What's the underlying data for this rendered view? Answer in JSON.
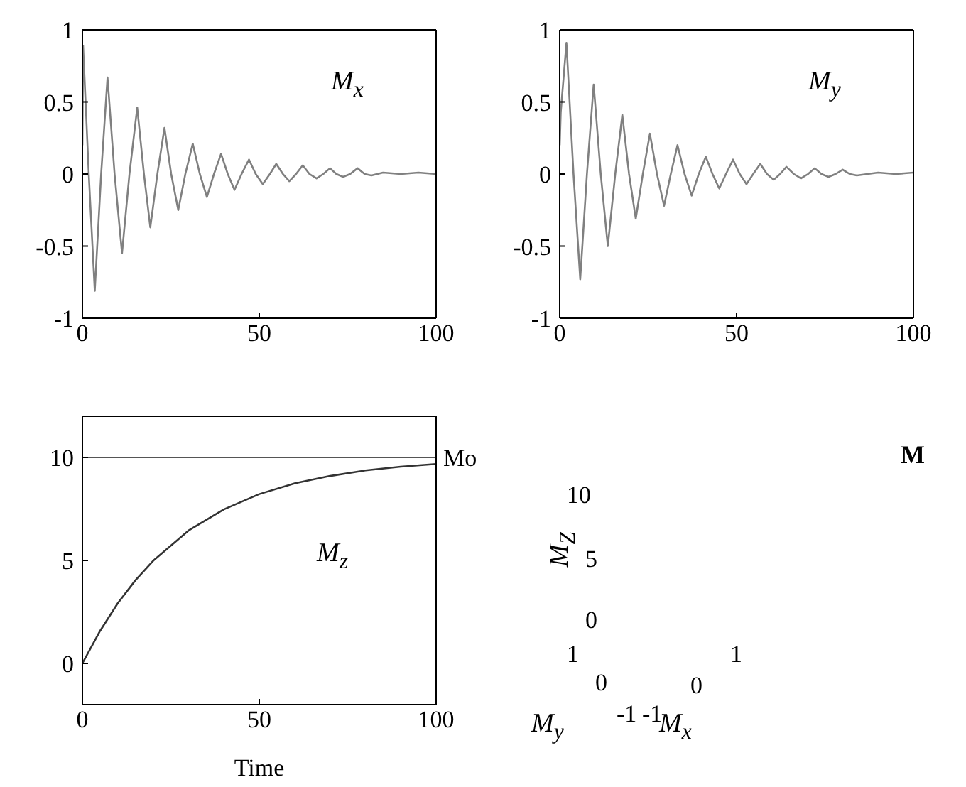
{
  "chart_data": [
    {
      "type": "line",
      "annotations": [
        "M$_{x}$"
      ],
      "xlim": [
        0,
        100
      ],
      "xticks": [
        0,
        50,
        100
      ],
      "ylim": [
        -1,
        1
      ],
      "yticks": [
        -1,
        -0.5,
        0,
        0.5,
        1
      ],
      "marker": "none",
      "line_style": "solid",
      "series": [
        {
          "color": "#808080",
          "x": [
            0,
            0.2,
            1.8,
            3.5,
            5.3,
            7.1,
            9.1,
            11.2,
            13.3,
            15.5,
            17.4,
            19.2,
            21.2,
            23.2,
            25.1,
            27.1,
            29.1,
            31.2,
            33.2,
            35.2,
            37.2,
            39.2,
            41.1,
            43,
            45,
            47.1,
            49,
            51,
            53,
            54.8,
            56.7,
            58.5,
            60.4,
            62.3,
            64.2,
            66.2,
            68.1,
            70,
            71.8,
            73.7,
            75.7,
            77.8,
            79.8,
            81.7,
            85,
            90,
            95,
            100
          ],
          "values": [
            0.2,
            0.89,
            0,
            -0.81,
            0,
            0.67,
            0,
            -0.55,
            0,
            0.46,
            0,
            -0.37,
            0,
            0.32,
            0,
            -0.25,
            0,
            0.21,
            0,
            -0.16,
            0,
            0.14,
            0,
            -0.11,
            0,
            0.1,
            0,
            -0.07,
            0,
            0.07,
            0,
            -0.05,
            0,
            0.06,
            0,
            -0.03,
            0,
            0.04,
            0,
            -0.02,
            0,
            0.04,
            0,
            -0.01,
            0.01,
            0,
            0.01,
            0
          ]
        }
      ]
    },
    {
      "type": "line",
      "annotations": [
        "M$_{y}$"
      ],
      "xlim": [
        0,
        100
      ],
      "xticks": [
        0,
        50,
        100
      ],
      "ylim": [
        -1,
        1
      ],
      "yticks": [
        -1,
        -0.5,
        0,
        0.5,
        1
      ],
      "marker": "none",
      "line_style": "solid",
      "series": [
        {
          "color": "#808080",
          "x": [
            0,
            0.3,
            1.9,
            3.9,
            5.8,
            7.7,
            9.6,
            11.6,
            13.6,
            15.7,
            17.7,
            19.6,
            21.5,
            23.5,
            25.5,
            27.5,
            29.5,
            31.4,
            33.3,
            35.3,
            37.3,
            39.3,
            41.3,
            43.2,
            45.1,
            47,
            49,
            50.9,
            52.8,
            54.7,
            56.7,
            58.6,
            60.5,
            62.3,
            64.1,
            66.2,
            68.2,
            70.2,
            72.1,
            74,
            76,
            78,
            80,
            82,
            84,
            90,
            95,
            100
          ],
          "values": [
            0.2,
            0.43,
            0.91,
            0,
            -0.73,
            0,
            0.62,
            0,
            -0.5,
            0,
            0.41,
            0,
            -0.31,
            0,
            0.28,
            0,
            -0.22,
            0,
            0.2,
            0,
            -0.15,
            0,
            0.12,
            0,
            -0.1,
            0,
            0.1,
            0,
            -0.07,
            0,
            0.07,
            0,
            -0.04,
            0,
            0.05,
            0,
            -0.03,
            0,
            0.04,
            0,
            -0.02,
            0,
            0.03,
            0,
            -0.01,
            0.01,
            0,
            0.01
          ]
        }
      ]
    },
    {
      "type": "line",
      "xlabel": "Time",
      "annotations": [
        "M$_{z}$"
      ],
      "xlim": [
        0,
        100
      ],
      "xticks": [
        0,
        50,
        100
      ],
      "ylim": [
        -2,
        12
      ],
      "yticks": [
        0,
        5,
        10
      ],
      "marker": "none",
      "line_style": "solid",
      "ref_lines": [
        {
          "axis": "y",
          "value": 10,
          "label": "Mo",
          "color": "#555555"
        }
      ],
      "series": [
        {
          "color": "#333333",
          "x": [
            0,
            5,
            10,
            15,
            20,
            30,
            40,
            50,
            60,
            70,
            80,
            90,
            100
          ],
          "values": [
            0,
            1.58,
            2.92,
            4.04,
            4.98,
            6.45,
            7.48,
            8.22,
            8.74,
            9.1,
            9.37,
            9.55,
            9.68
          ]
        }
      ]
    },
    {
      "type": "other",
      "title": "M",
      "annotations": [
        "M$_{Z}$",
        "M$_{y}$",
        "M$_{x}$",
        "10",
        "5",
        "0",
        "1",
        "0",
        "-1",
        "0",
        "1",
        "-1"
      ]
    }
  ]
}
